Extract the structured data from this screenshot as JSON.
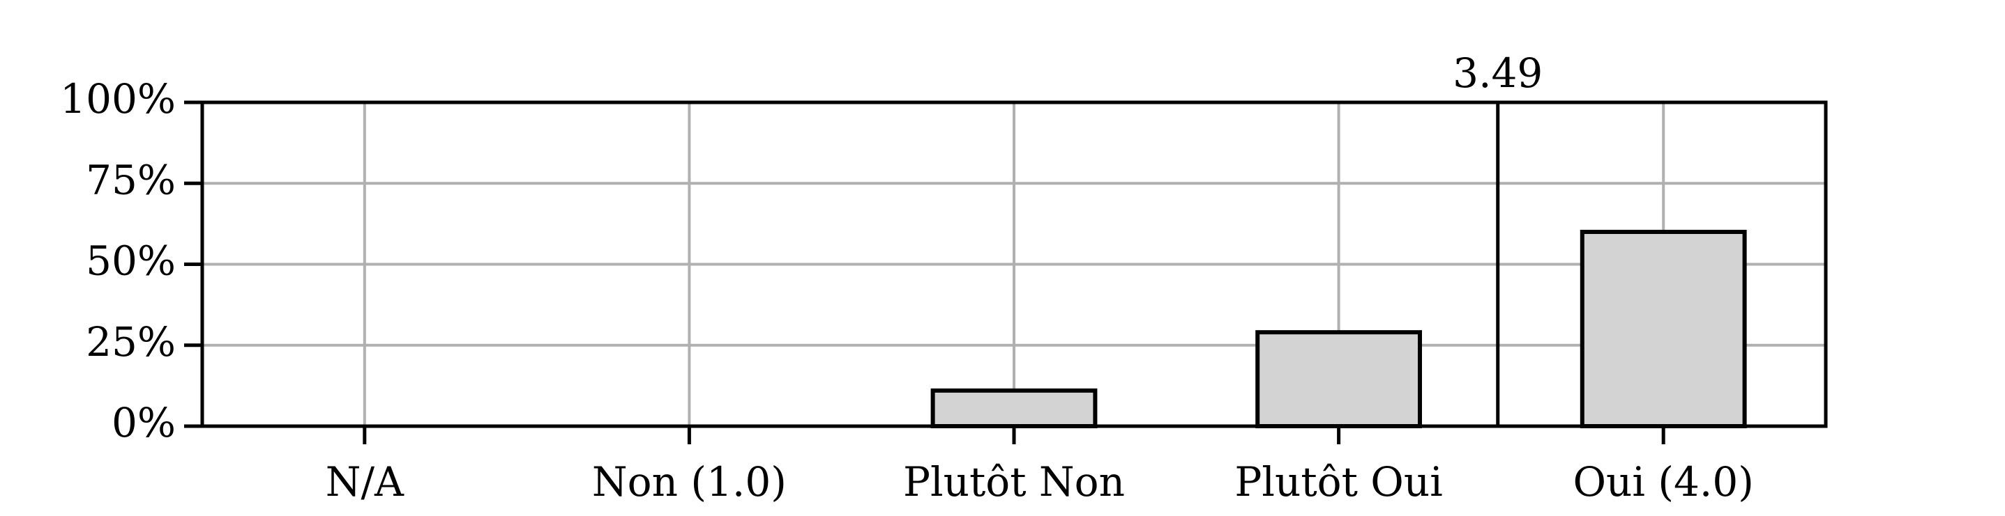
{
  "chart_data": {
    "type": "bar",
    "categories": [
      "N/A",
      "Non (1.0)",
      "Plutôt Non",
      "Plutôt Oui",
      "Oui (4.0)"
    ],
    "values": [
      0,
      0,
      11,
      29,
      60
    ],
    "ylim": [
      0,
      100
    ],
    "yticks": [
      0,
      25,
      50,
      75,
      100
    ],
    "ytick_labels": [
      "0%",
      "25%",
      "50%",
      "75%",
      "100%"
    ],
    "mean_value": 3.49,
    "mean_label": "3.49",
    "grid": true,
    "bar_color": "#d3d3d3",
    "bar_edge_color": "#000000",
    "grid_color": "#b0b0b0"
  }
}
